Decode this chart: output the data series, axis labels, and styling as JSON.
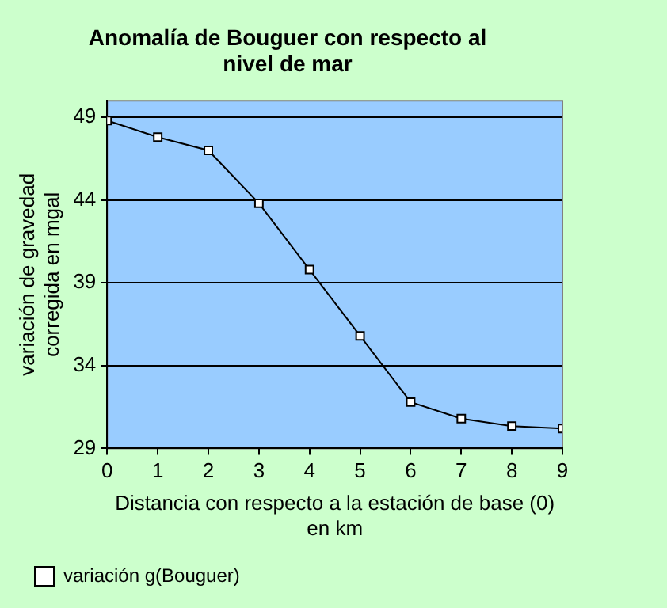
{
  "chart_data": {
    "type": "line",
    "title": "Anomalía de Bouguer con respecto al\nnivel de mar",
    "xlabel": "Distancia con respecto a la estación de base (0)\nen km",
    "ylabel": "variación de gravedad\ncorregida en mgal",
    "x": [
      0,
      1,
      2,
      3,
      4,
      5,
      6,
      7,
      8,
      9
    ],
    "series": [
      {
        "name": "variación g(Bouguer)",
        "color": "#000000",
        "values": [
          48.8,
          47.8,
          47.0,
          43.8,
          39.8,
          35.8,
          31.8,
          30.8,
          30.35,
          30.2
        ]
      }
    ],
    "xlim": [
      0,
      9
    ],
    "xticks": [
      0,
      1,
      2,
      3,
      4,
      5,
      6,
      7,
      8,
      9
    ],
    "ylim": [
      29,
      50
    ],
    "yticks": [
      29,
      34,
      39,
      44,
      49
    ],
    "grid": "y",
    "legend": "bottom left",
    "marker": "square",
    "line_style": "solid"
  }
}
